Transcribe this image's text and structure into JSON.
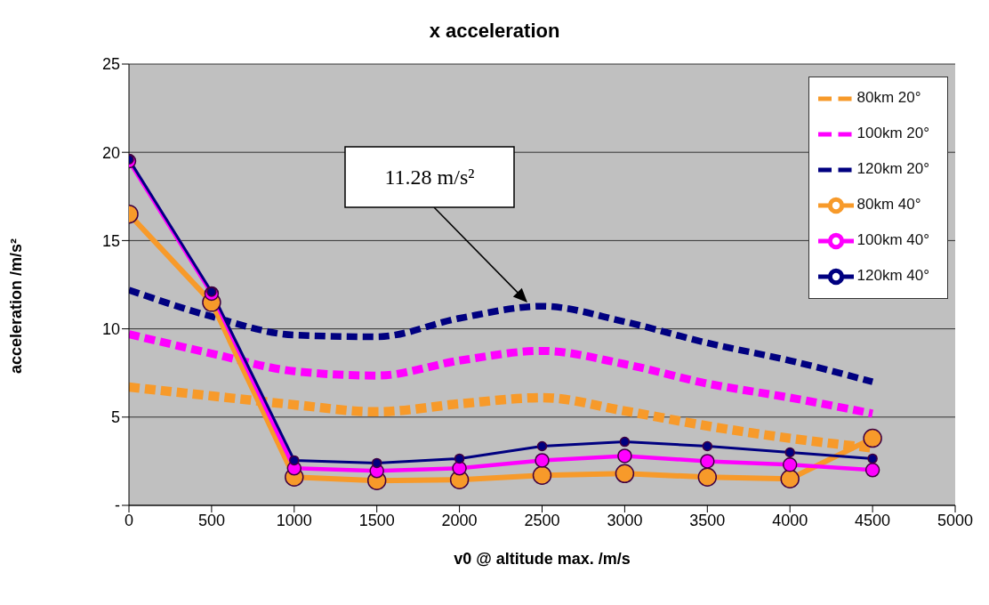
{
  "chart_data": {
    "type": "line",
    "title": "x acceleration",
    "xlabel": "v0 @ altitude max. /m/s",
    "ylabel": "acceleration /m/s²",
    "x": [
      0,
      500,
      1000,
      1500,
      2000,
      2500,
      3000,
      3500,
      4000,
      4500
    ],
    "xlim": [
      0,
      5000
    ],
    "xticks": [
      0,
      500,
      1000,
      1500,
      2000,
      2500,
      3000,
      3500,
      4000,
      4500,
      5000
    ],
    "ylim": [
      0,
      25
    ],
    "yticks": [
      {
        "value": 0,
        "label": "-"
      },
      5,
      10,
      15,
      20,
      25
    ],
    "grid": "y",
    "legend": "top right",
    "annotations": [
      "11.28 m/s²"
    ],
    "series": [
      {
        "name": "80km 20°",
        "color": "#f79a2a",
        "line_style": "dashed",
        "marker": "none",
        "values": [
          6.7,
          6.2,
          5.7,
          5.3,
          5.75,
          6.1,
          5.35,
          4.5,
          3.8,
          3.25
        ]
      },
      {
        "name": "100km 20°",
        "color": "#ff00ff",
        "line_style": "dashed",
        "marker": "none",
        "values": [
          9.7,
          8.6,
          7.6,
          7.35,
          8.2,
          8.75,
          8.0,
          6.9,
          6.1,
          5.2
        ]
      },
      {
        "name": "120km 20°",
        "color": "#000080",
        "line_style": "dashed",
        "marker": "none",
        "values": [
          12.2,
          10.7,
          9.65,
          9.55,
          10.6,
          11.28,
          10.4,
          9.2,
          8.2,
          7.0
        ]
      },
      {
        "name": "80km 40°",
        "color": "#f79a2a",
        "line_style": "solid",
        "marker": "circle",
        "values": [
          16.5,
          11.5,
          1.6,
          1.4,
          1.45,
          1.7,
          1.8,
          1.6,
          1.5,
          3.8
        ]
      },
      {
        "name": "100km 40°",
        "color": "#ff00ff",
        "line_style": "solid",
        "marker": "circle",
        "values": [
          19.5,
          12.0,
          2.1,
          1.95,
          2.1,
          2.55,
          2.8,
          2.5,
          2.3,
          2.0
        ]
      },
      {
        "name": "120km 40°",
        "color": "#000080",
        "line_style": "solid",
        "marker": "circle",
        "values": [
          19.6,
          12.1,
          2.55,
          2.4,
          2.65,
          3.35,
          3.6,
          3.35,
          3.0,
          2.65
        ]
      }
    ]
  }
}
